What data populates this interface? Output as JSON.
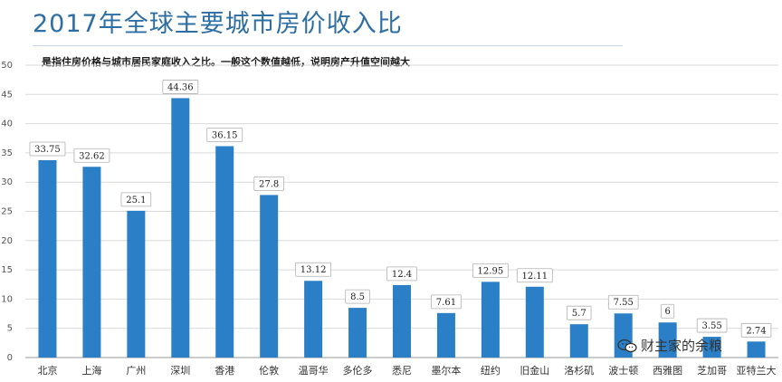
{
  "title": "2017年全球主要城市房价收入比",
  "subtitle": "是指住房价格与城市居民家庭收入之比。一般这个数值越低，说明房产升值空间越大",
  "watermark": "财主家的余粮",
  "colors": {
    "bar": "#2a7fc7",
    "title": "#2d6ea3",
    "grid": "#d9d9d9",
    "axis_text": "#555555"
  },
  "chart_data": {
    "type": "bar",
    "title": "2017年全球主要城市房价收入比",
    "categories": [
      "北京",
      "上海",
      "广州",
      "深圳",
      "香港",
      "伦敦",
      "温哥华",
      "多伦多",
      "悉尼",
      "墨尔本",
      "纽约",
      "旧金山",
      "洛杉矶",
      "波士顿",
      "西雅图",
      "芝加哥",
      "亚特兰大"
    ],
    "values": [
      33.75,
      32.62,
      25.1,
      44.36,
      36.15,
      27.8,
      13.12,
      8.5,
      12.4,
      7.61,
      12.95,
      12.11,
      5.7,
      7.55,
      6,
      3.55,
      2.74
    ],
    "value_labels": [
      "33.75",
      "32.62",
      "25.1",
      "44.36",
      "36.15",
      "27.8",
      "13.12",
      "8.5",
      "12.4",
      "7.61",
      "12.95",
      "12.11",
      "5.7",
      "7.55",
      "6",
      "3.55",
      "2.74"
    ],
    "y_ticks": [
      "0",
      "5",
      "10",
      "15",
      "20",
      "25",
      "30",
      "35",
      "40",
      "45",
      "50"
    ],
    "ylim": [
      0,
      50
    ],
    "grid": true,
    "legend": "none"
  }
}
